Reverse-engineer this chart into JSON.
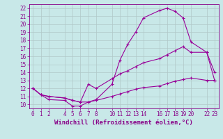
{
  "xlabel": "Windchill (Refroidissement éolien,°C)",
  "bg_color": "#c8e8e8",
  "line_color": "#990099",
  "grid_color": "#b0c8c8",
  "ylim": [
    9.5,
    22.5
  ],
  "xlim": [
    -0.5,
    23.5
  ],
  "yticks": [
    10,
    11,
    12,
    13,
    14,
    15,
    16,
    17,
    18,
    19,
    20,
    21,
    22
  ],
  "xtick_positions": [
    0,
    1,
    2,
    4,
    5,
    6,
    7,
    8,
    10,
    11,
    12,
    13,
    14,
    16,
    17,
    18,
    19,
    20,
    22,
    23
  ],
  "xtick_labels": [
    "0",
    "1",
    "2",
    "4",
    "5",
    "6",
    "7",
    "8",
    "10",
    "11",
    "12",
    "13",
    "14",
    "16",
    "17",
    "18",
    "19",
    "20",
    "22",
    "23"
  ],
  "line1_x": [
    0,
    1,
    2,
    4,
    5,
    6,
    7,
    8,
    10,
    11,
    12,
    13,
    14,
    16,
    17,
    18,
    19,
    20,
    22,
    23
  ],
  "line1_y": [
    12.0,
    11.2,
    10.6,
    10.5,
    9.8,
    9.8,
    10.3,
    10.6,
    12.5,
    15.5,
    17.5,
    19.0,
    20.8,
    21.7,
    22.0,
    21.6,
    20.8,
    17.8,
    16.5,
    14.0
  ],
  "line2_x": [
    0,
    1,
    2,
    4,
    5,
    6,
    7,
    8,
    10,
    11,
    12,
    13,
    14,
    16,
    17,
    18,
    19,
    20,
    22,
    23
  ],
  "line2_y": [
    12.0,
    11.2,
    11.0,
    10.8,
    10.5,
    10.3,
    12.5,
    12.0,
    13.2,
    13.8,
    14.2,
    14.7,
    15.2,
    15.7,
    16.2,
    16.7,
    17.2,
    16.5,
    16.5,
    13.0
  ],
  "line3_x": [
    0,
    1,
    2,
    4,
    5,
    6,
    7,
    8,
    10,
    11,
    12,
    13,
    14,
    16,
    17,
    18,
    19,
    20,
    22,
    23
  ],
  "line3_y": [
    12.0,
    11.2,
    11.0,
    10.8,
    10.5,
    10.3,
    10.3,
    10.5,
    11.0,
    11.3,
    11.6,
    11.9,
    12.1,
    12.3,
    12.6,
    12.9,
    13.1,
    13.3,
    13.0,
    13.0
  ],
  "marker": "+",
  "markersize": 3,
  "linewidth": 0.8,
  "font_color": "#880088",
  "xlabel_fontsize": 6.5,
  "tick_fontsize": 5.5
}
